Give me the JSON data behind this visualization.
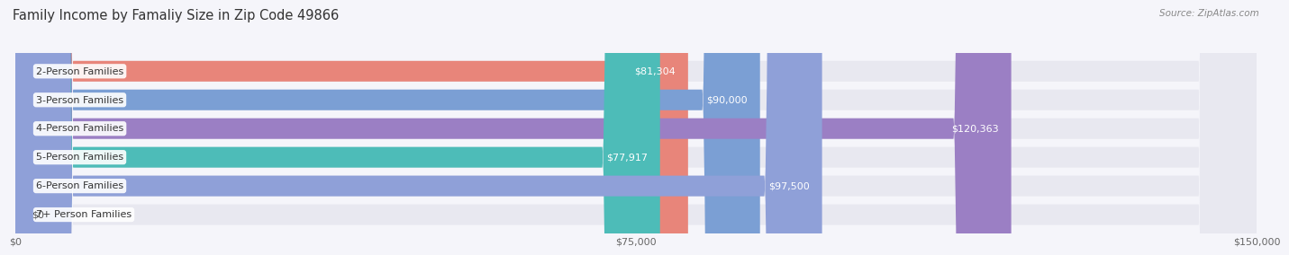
{
  "title": "Family Income by Famaliy Size in Zip Code 49866",
  "source": "Source: ZipAtlas.com",
  "categories": [
    "2-Person Families",
    "3-Person Families",
    "4-Person Families",
    "5-Person Families",
    "6-Person Families",
    "7+ Person Families"
  ],
  "values": [
    81304,
    90000,
    120363,
    77917,
    97500,
    0
  ],
  "bar_colors": [
    "#e8857a",
    "#7b9fd4",
    "#9b7fc4",
    "#4dbcb8",
    "#8fa0d8",
    "#f4a0b8"
  ],
  "bar_bg_color": "#e8e8f0",
  "value_labels": [
    "$81,304",
    "$90,000",
    "$120,363",
    "$77,917",
    "$97,500",
    "$0"
  ],
  "xlim": [
    0,
    150000
  ],
  "xtick_values": [
    0,
    75000,
    150000
  ],
  "xtick_labels": [
    "$0",
    "$75,000",
    "$150,000"
  ],
  "bg_color": "#f5f5fa",
  "bar_height": 0.72,
  "title_fontsize": 10.5,
  "label_fontsize": 8,
  "value_fontsize": 8,
  "source_fontsize": 7.5
}
